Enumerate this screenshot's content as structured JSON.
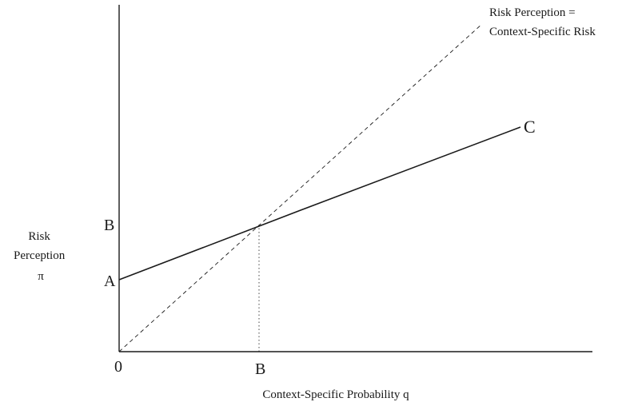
{
  "diagram": {
    "y_axis_label": [
      "Risk",
      "Perception",
      "π"
    ],
    "x_axis_label": "Context-Specific Probability q",
    "origin_label": "0",
    "y_tick_A": "A",
    "y_tick_B": "B",
    "x_tick_B": "B",
    "line_C_label": "C",
    "diagonal_label": [
      "Risk Perception =",
      "Context-Specific Risk"
    ]
  },
  "colors": {
    "ink": "#1a1a1a",
    "background": "#ffffff"
  }
}
